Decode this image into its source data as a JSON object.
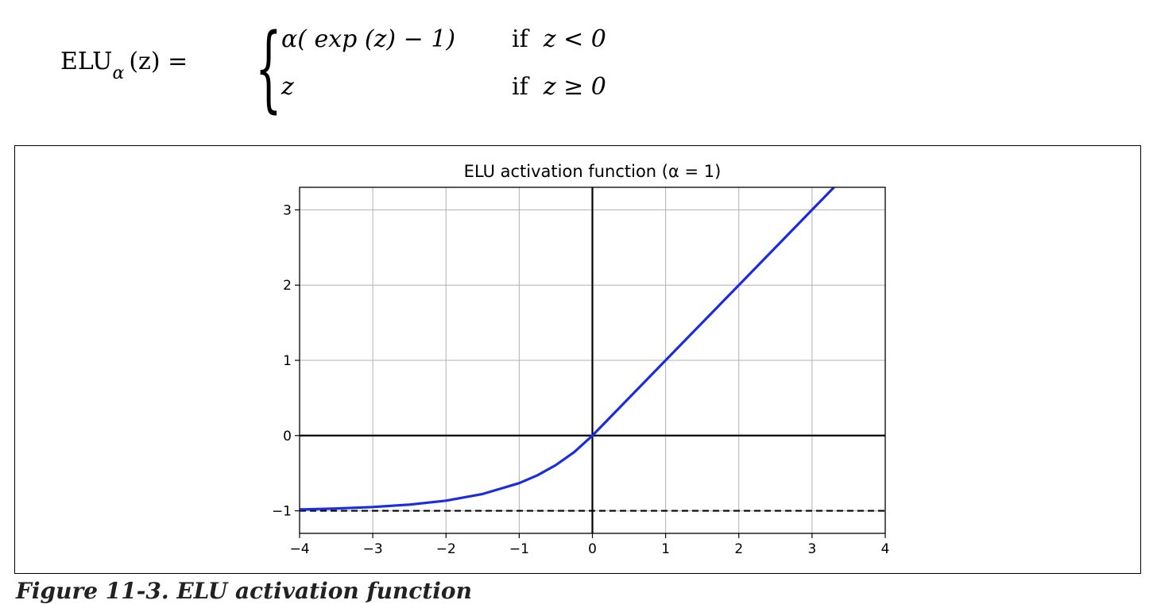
{
  "formula": {
    "lhs_name": "ELU",
    "lhs_subscript": "α",
    "lhs_arg": "(z) =",
    "case1_expr": "α( exp (z) − 1)",
    "case1_cond_word": "if",
    "case1_cond_expr": "z < 0",
    "case2_expr": "z",
    "case2_cond_word": "if",
    "case2_cond_expr": "z ≥ 0"
  },
  "caption": "Figure 11-3. ELU activation function",
  "chart_data": {
    "type": "line",
    "title": "ELU activation function (α = 1)",
    "xlabel": "",
    "ylabel": "",
    "xlim": [
      -4,
      4
    ],
    "ylim": [
      -1.3,
      3.3
    ],
    "xticks": [
      -4,
      -3,
      -2,
      -1,
      0,
      1,
      2,
      3,
      4
    ],
    "xtick_labels": [
      "−4",
      "−3",
      "−2",
      "−1",
      "0",
      "1",
      "2",
      "3",
      "4"
    ],
    "yticks": [
      -1,
      0,
      1,
      2,
      3
    ],
    "ytick_labels": [
      "−1",
      "0",
      "1",
      "2",
      "3"
    ],
    "grid": true,
    "series": [
      {
        "color": "#1a2ce0",
        "x": [
          -4,
          -3.5,
          -3,
          -2.5,
          -2,
          -1.5,
          -1,
          -0.75,
          -0.5,
          -0.25,
          0,
          1,
          2,
          3,
          3.3
        ],
        "y": [
          -0.982,
          -0.97,
          -0.95,
          -0.918,
          -0.865,
          -0.777,
          -0.632,
          -0.528,
          -0.393,
          -0.221,
          0,
          1,
          2,
          3,
          3.3
        ]
      }
    ],
    "reference_lines": [
      {
        "orientation": "horizontal",
        "value": 0,
        "style": "solid",
        "color": "#000000"
      },
      {
        "orientation": "vertical",
        "value": 0,
        "style": "solid",
        "color": "#000000"
      },
      {
        "orientation": "horizontal",
        "value": -1,
        "style": "dashed",
        "color": "#000000"
      }
    ]
  }
}
